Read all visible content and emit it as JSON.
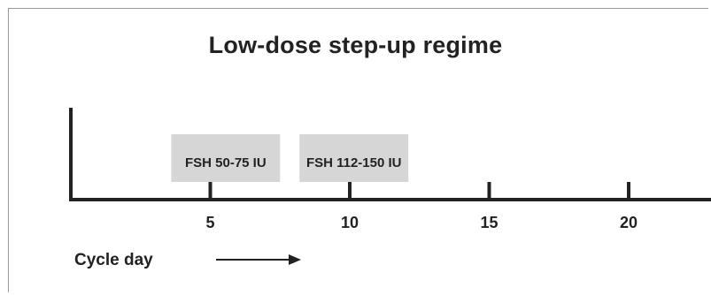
{
  "title": "Low-dose step-up regime",
  "axis": {
    "label": "Cycle day",
    "day_min": 0,
    "day_max": 23,
    "ticks": [
      5,
      10,
      15,
      20
    ]
  },
  "regimen": [
    {
      "label": "FSH 50-75 IU",
      "start_day": 3.6,
      "end_day": 7.5
    },
    {
      "label": "FSH 112-150 IU",
      "start_day": 8.2,
      "end_day": 12.1
    }
  ],
  "colors": {
    "ink": "#222222",
    "box_fill": "#d6d6d6",
    "frame": "#9a9a9a"
  }
}
